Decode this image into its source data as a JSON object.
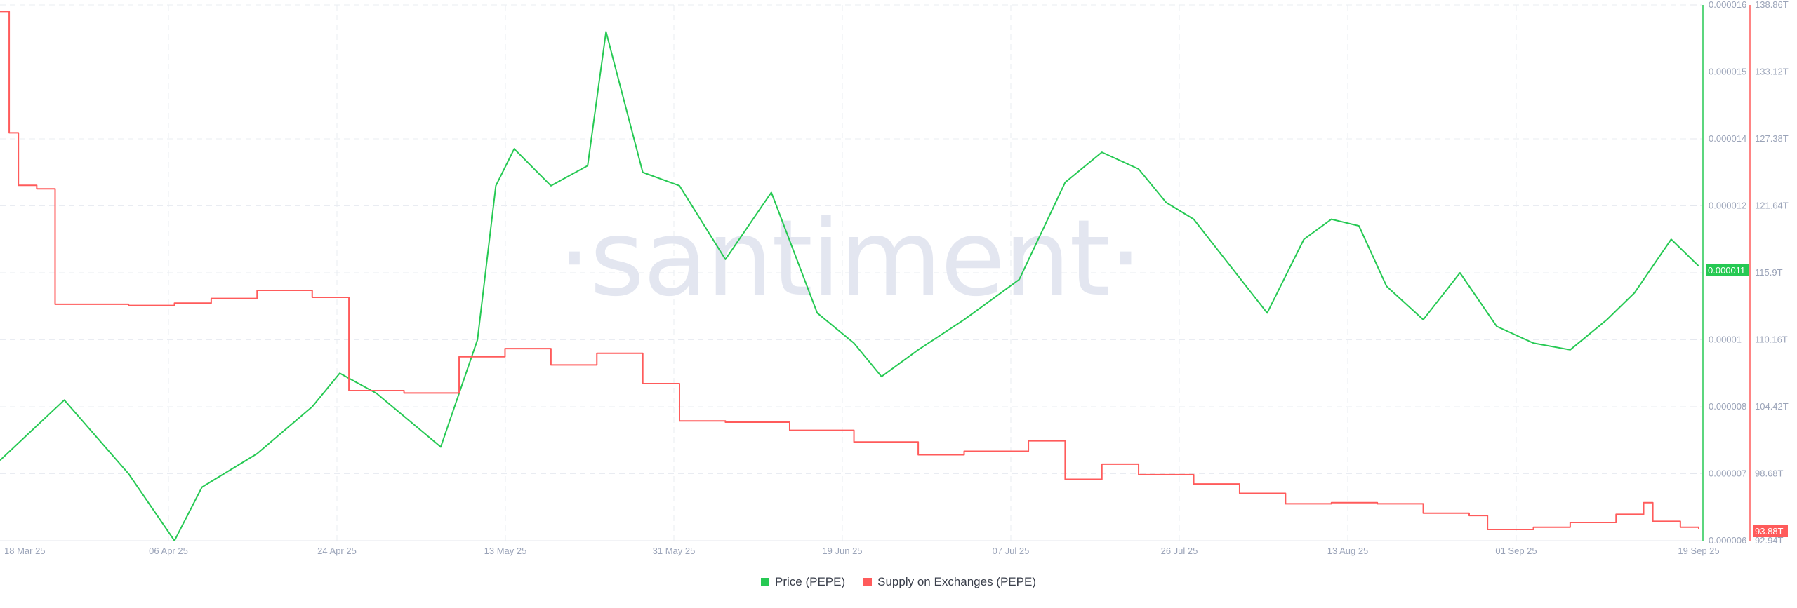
{
  "chart_data": {
    "type": "line",
    "title": "",
    "watermark": "·santiment·",
    "x_ticks": [
      "18 Mar 25",
      "06 Apr 25",
      "24 Apr 25",
      "13 May 25",
      "31 May 25",
      "19 Jun 25",
      "07 Jul 25",
      "26 Jul 25",
      "13 Aug 25",
      "01 Sep 25",
      "19 Sep 25"
    ],
    "x_range": [
      "18 Mar 25",
      "19 Sep 25"
    ],
    "legend_position": "bottom-center",
    "grid": true,
    "y_axes": {
      "left_price": {
        "label": "Price (PEPE)",
        "ticks": [
          "0.000016",
          "0.000015",
          "0.000014",
          "0.000012",
          "0.000011",
          "0.00001",
          "0.000008",
          "0.000007",
          "0.000006"
        ],
        "range": [
          6e-06,
          1.6e-05
        ],
        "current_value": "0.000011",
        "color": "#26c953"
      },
      "right_supply": {
        "label": "Supply on Exchanges (PEPE)",
        "ticks": [
          "138.86T",
          "133.12T",
          "127.38T",
          "121.64T",
          "115.9T",
          "110.16T",
          "104.42T",
          "98.68T",
          "92.94T"
        ],
        "range": [
          92.94,
          138.86
        ],
        "unit": "T",
        "current_value": "93.88T",
        "color": "#ff5b5b"
      }
    },
    "series": [
      {
        "name": "Price (PEPE)",
        "axis": "left",
        "color": "#26c953",
        "x": [
          "18 Mar 25",
          "25 Mar 25",
          "01 Apr 25",
          "06 Apr 25",
          "09 Apr 25",
          "15 Apr 25",
          "21 Apr 25",
          "24 Apr 25",
          "28 Apr 25",
          "05 May 25",
          "09 May 25",
          "11 May 25",
          "13 May 25",
          "17 May 25",
          "21 May 25",
          "23 May 25",
          "27 May 25",
          "31 May 25",
          "05 Jun 25",
          "10 Jun 25",
          "15 Jun 25",
          "19 Jun 25",
          "22 Jun 25",
          "26 Jun 25",
          "01 Jul 25",
          "07 Jul 25",
          "12 Jul 25",
          "16 Jul 25",
          "20 Jul 25",
          "23 Jul 25",
          "26 Jul 25",
          "30 Jul 25",
          "03 Aug 25",
          "07 Aug 25",
          "10 Aug 25",
          "13 Aug 25",
          "16 Aug 25",
          "20 Aug 25",
          "24 Aug 25",
          "28 Aug 25",
          "01 Sep 25",
          "05 Sep 25",
          "09 Sep 25",
          "12 Sep 25",
          "16 Sep 25",
          "19 Sep 25"
        ],
        "values": [
          7.2e-06,
          8.2e-06,
          7e-06,
          6e-06,
          6.8e-06,
          7.3e-06,
          8e-06,
          9e-06,
          8.4e-06,
          7.4e-06,
          1e-05,
          1.26e-05,
          1.37e-05,
          1.26e-05,
          1.32e-05,
          1.56e-05,
          1.3e-05,
          1.26e-05,
          1.12e-05,
          1.24e-05,
          1.04e-05,
          9.9e-06,
          8.9e-06,
          9.7e-06,
          1.03e-05,
          1.09e-05,
          1.27e-05,
          1.36e-05,
          1.31e-05,
          1.21e-05,
          1.18e-05,
          1.11e-05,
          1.04e-05,
          1.15e-05,
          1.18e-05,
          1.17e-05,
          1.08e-05,
          1.03e-05,
          1.1e-05,
          1.02e-05,
          9.9e-06,
          9.7e-06,
          1.03e-05,
          1.07e-05,
          1.15e-05,
          1.11e-05
        ]
      },
      {
        "name": "Supply on Exchanges (PEPE)",
        "axis": "right",
        "unit": "T",
        "color": "#ff5b5b",
        "x": [
          "18 Mar 25",
          "19 Mar 25",
          "20 Mar 25",
          "22 Mar 25",
          "24 Mar 25",
          "01 Apr 25",
          "06 Apr 25",
          "10 Apr 25",
          "15 Apr 25",
          "21 Apr 25",
          "25 Apr 25",
          "01 May 25",
          "07 May 25",
          "12 May 25",
          "17 May 25",
          "22 May 25",
          "27 May 25",
          "31 May 25",
          "05 Jun 25",
          "12 Jun 25",
          "19 Jun 25",
          "26 Jun 25",
          "01 Jul 25",
          "07 Jul 25",
          "08 Jul 25",
          "12 Jul 25",
          "16 Jul 25",
          "20 Jul 25",
          "26 Jul 25",
          "31 Jul 25",
          "05 Aug 25",
          "10 Aug 25",
          "15 Aug 25",
          "20 Aug 25",
          "25 Aug 25",
          "27 Aug 25",
          "01 Sep 25",
          "05 Sep 25",
          "10 Sep 25",
          "13 Sep 25",
          "14 Sep 25",
          "17 Sep 25",
          "19 Sep 25"
        ],
        "values": [
          138.3,
          127.9,
          123.4,
          123.1,
          113.2,
          113.1,
          113.3,
          113.7,
          114.4,
          113.8,
          105.8,
          105.6,
          108.7,
          109.4,
          108.0,
          109.0,
          106.4,
          103.2,
          103.1,
          102.4,
          101.4,
          100.3,
          100.6,
          100.6,
          101.5,
          98.2,
          99.5,
          98.6,
          97.8,
          97.0,
          96.1,
          96.2,
          96.1,
          95.3,
          95.1,
          93.9,
          94.1,
          94.5,
          95.2,
          96.2,
          94.6,
          94.1,
          93.9
        ]
      }
    ]
  },
  "legend": {
    "items": [
      {
        "label": "Price (PEPE)",
        "color": "#26c953"
      },
      {
        "label": "Supply on Exchanges (PEPE)",
        "color": "#ff5b5b"
      }
    ]
  }
}
